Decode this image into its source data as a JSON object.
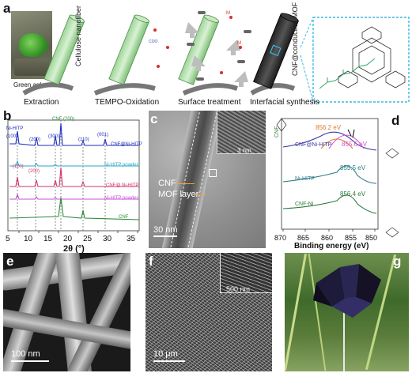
{
  "panel_labels": {
    "a": "a",
    "b": "b",
    "c": "c",
    "d": "d",
    "e": "e",
    "f": "f",
    "g": "g"
  },
  "panel_a": {
    "photo_caption": "Green aglas",
    "fiber_labels": [
      "Cellulose nanofiber",
      "CNF@conductive MOF"
    ],
    "steps": [
      "Extraction",
      "TEMPO-Oxidation",
      "Surface treatment",
      "Interfacial synthesis"
    ],
    "chem_tags": [
      "COO",
      "M",
      "M"
    ]
  },
  "panel_b": {
    "xlabel": "2θ (°)",
    "ticks": [
      "5",
      "10",
      "15",
      "20",
      "25",
      "30",
      "35"
    ],
    "annotations": [
      "Ni-HITP (100)",
      "(200)",
      "(300)",
      "CNF (200)",
      "(110)",
      "(001)",
      "(110)",
      "(200)"
    ],
    "series_labels": [
      "CNF@Ni-HITP",
      "Ni-HITP powder",
      "CNF@ Ni-HITP",
      "Ni-HITP powder",
      "CNF"
    ],
    "colors": [
      "#1d2fbf",
      "#2aa7c9",
      "#d6336c",
      "#c94fd6",
      "#2e8b3a"
    ]
  },
  "panel_c": {
    "labels": [
      "CNF",
      "MOF layer",
      "3 nm"
    ],
    "scale": "30 nm"
  },
  "panel_d": {
    "xlabel": "Binding energy (eV)",
    "ticks": [
      "870",
      "865",
      "860",
      "855",
      "850"
    ],
    "peaks": [
      "856.2 eV",
      "855.6 eV",
      "855.5 eV",
      "856.4 eV"
    ],
    "series_labels": [
      "CNF@Ni-HITP",
      "Ni-HITP",
      "CNF-Ni"
    ],
    "side_tag": "CNF"
  },
  "panel_e": {
    "scale": "100 nm"
  },
  "panel_f": {
    "scale": "10 μm",
    "inset_scale": "500 nm"
  },
  "chart_data": {
    "type": "line",
    "title": "",
    "xlabel": "2θ (°)",
    "ylabel": "",
    "xlim": [
      4,
      35
    ],
    "series": [
      {
        "name": "CNF@Ni-HITP",
        "x": [
          4.7,
          9.5,
          12.6,
          16.5,
          22.6,
          27.3
        ],
        "y": [
          1,
          0.6,
          0.5,
          1.0,
          0.55,
          0.4
        ]
      },
      {
        "name": "Ni-HITP powder",
        "x": [
          4.7,
          9.5,
          12.6,
          27.3
        ],
        "y": [
          0.3,
          0.2,
          0.15,
          0.1
        ]
      },
      {
        "name": "CNF@ Ni-HITP",
        "x": [
          4.7,
          9.5,
          12.6,
          16.5,
          22.6
        ],
        "y": [
          0.8,
          0.5,
          0.5,
          0.9,
          0.5
        ]
      },
      {
        "name": "Ni-HITP powder",
        "x": [
          4.7,
          9.5,
          12.6
        ],
        "y": [
          0.3,
          0.2,
          0.1
        ]
      },
      {
        "name": "CNF",
        "x": [
          16.5,
          22.6
        ],
        "y": [
          0.7,
          0.5
        ]
      }
    ]
  }
}
